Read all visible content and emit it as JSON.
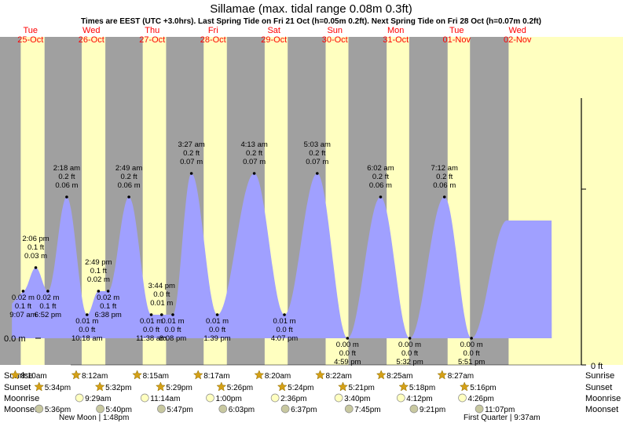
{
  "title": "Sillamae (max. tidal range 0.08m 0.3ft)",
  "subtitle": "Times are EEST (UTC +3.0hrs). Last Spring Tide on Fri 21 Oct (h=0.05m 0.2ft). Next Spring Tide on Fri 28 Oct (h=0.07m 0.2ft)",
  "colors": {
    "night": "#a0a0a0",
    "day": "#ffffc0",
    "tide": "#a0a0ff",
    "day_label": "#ff0000",
    "star": "#d4a017",
    "moon": "#ffffc0"
  },
  "chart_data": {
    "type": "area",
    "x_unit": "hours from 00:00 Tue 25-Oct",
    "days": [
      {
        "name": "Tue",
        "date": "25-Oct"
      },
      {
        "name": "Wed",
        "date": "26-Oct"
      },
      {
        "name": "Thu",
        "date": "27-Oct"
      },
      {
        "name": "Fri",
        "date": "28-Oct"
      },
      {
        "name": "Sat",
        "date": "29-Oct"
      },
      {
        "name": "Sun",
        "date": "30-Oct"
      },
      {
        "name": "Mon",
        "date": "31-Oct"
      },
      {
        "name": "Tue",
        "date": "01-Nov"
      },
      {
        "name": "Wed",
        "date": "02-Nov"
      }
    ],
    "y_axis": {
      "left_label": "0.0 m",
      "right_label": "0 ft",
      "ylim_m": [
        -0.025,
        0.095
      ]
    },
    "extremes": [
      {
        "x": 9.12,
        "h": 0.02,
        "label": [
          "0.02 m",
          "0.1 ft",
          "9:07 am"
        ]
      },
      {
        "x": 14.1,
        "h": 0.03,
        "label": [
          "2:06 pm",
          "0.1 ft",
          "0.03 m"
        ]
      },
      {
        "x": 18.87,
        "h": 0.02,
        "label": [
          "0.02 m",
          "0.1 ft",
          "6:52 pm"
        ]
      },
      {
        "x": 26.3,
        "h": 0.06,
        "label": [
          "2:18 am",
          "0.2 ft",
          "0.06 m"
        ]
      },
      {
        "x": 34.3,
        "h": 0.01,
        "label": [
          "0.01 m",
          "0.0 ft",
          "10:18 am"
        ]
      },
      {
        "x": 38.82,
        "h": 0.02,
        "label": [
          "2:49 pm",
          "0.1 ft",
          "0.02 m"
        ]
      },
      {
        "x": 42.63,
        "h": 0.02,
        "label": [
          "0.02 m",
          "0.1 ft",
          "6:38 pm"
        ]
      },
      {
        "x": 50.82,
        "h": 0.06,
        "label": [
          "2:49 am",
          "0.2 ft",
          "0.06 m"
        ]
      },
      {
        "x": 59.63,
        "h": 0.01,
        "label": [
          "0.01 m",
          "0.0 ft",
          "11:38 am"
        ]
      },
      {
        "x": 63.73,
        "h": 0.01,
        "label": [
          "3:44 pm",
          "0.0 ft",
          "0.01 m"
        ]
      },
      {
        "x": 68.13,
        "h": 0.01,
        "label": [
          "0.01 m",
          "0.0 ft",
          "8:08 pm"
        ]
      },
      {
        "x": 75.45,
        "h": 0.07,
        "label": [
          "3:27 am",
          "0.2 ft",
          "0.07 m"
        ]
      },
      {
        "x": 85.65,
        "h": 0.01,
        "label": [
          "0.01 m",
          "0.0 ft",
          "1:39 pm"
        ]
      },
      {
        "x": 100.22,
        "h": 0.07,
        "label": [
          "4:13 am",
          "0.2 ft",
          "0.07 m"
        ]
      },
      {
        "x": 112.12,
        "h": 0.01,
        "label": [
          "0.01 m",
          "0.0 ft",
          "4:07 pm"
        ]
      },
      {
        "x": 125.05,
        "h": 0.07,
        "label": [
          "5:03 am",
          "0.2 ft",
          "0.07 m"
        ]
      },
      {
        "x": 136.98,
        "h": 0.0,
        "label": [
          "0.00 m",
          "0.0 ft",
          "4:59 pm"
        ]
      },
      {
        "x": 150.03,
        "h": 0.06,
        "label": [
          "6:02 am",
          "0.2 ft",
          "0.06 m"
        ]
      },
      {
        "x": 161.53,
        "h": 0.0,
        "label": [
          "0.00 m",
          "0.0 ft",
          "5:32 pm"
        ]
      },
      {
        "x": 175.2,
        "h": 0.06,
        "label": [
          "7:12 am",
          "0.2 ft",
          "0.06 m"
        ]
      },
      {
        "x": 185.85,
        "h": 0.0,
        "label": [
          "0.00 m",
          "0.0 ft",
          "5:51 pm"
        ]
      }
    ],
    "sun_moon": {
      "row_labels": [
        "Sunrise",
        "Sunset",
        "Moonrise",
        "Moonset"
      ],
      "sunrise": [
        {
          "x": 8.17,
          "t": "8:10am"
        },
        {
          "x": 32.2,
          "t": "8:12am"
        },
        {
          "x": 56.25,
          "t": "8:15am"
        },
        {
          "x": 80.28,
          "t": "8:17am"
        },
        {
          "x": 104.33,
          "t": "8:20am"
        },
        {
          "x": 128.37,
          "t": "8:22am"
        },
        {
          "x": 152.42,
          "t": "8:25am"
        },
        {
          "x": 176.45,
          "t": "8:27am"
        }
      ],
      "sunset": [
        {
          "x": 17.57,
          "t": "5:34pm"
        },
        {
          "x": 41.53,
          "t": "5:32pm"
        },
        {
          "x": 65.48,
          "t": "5:29pm"
        },
        {
          "x": 89.43,
          "t": "5:26pm"
        },
        {
          "x": 113.4,
          "t": "5:24pm"
        },
        {
          "x": 137.35,
          "t": "5:21pm"
        },
        {
          "x": 161.3,
          "t": "5:18pm"
        },
        {
          "x": 185.27,
          "t": "5:16pm"
        }
      ],
      "moonrise": [
        {
          "x": 33.48,
          "t": "9:29am"
        },
        {
          "x": 59.23,
          "t": "11:14am"
        },
        {
          "x": 85.0,
          "t": "1:00pm"
        },
        {
          "x": 110.6,
          "t": "2:36pm"
        },
        {
          "x": 135.67,
          "t": "3:40pm"
        },
        {
          "x": 160.2,
          "t": "4:12pm"
        },
        {
          "x": 184.43,
          "t": "4:26pm"
        }
      ],
      "moonset": [
        {
          "x": 17.6,
          "t": "5:36pm"
        },
        {
          "x": 41.67,
          "t": "5:40pm"
        },
        {
          "x": 65.78,
          "t": "5:47pm"
        },
        {
          "x": 90.05,
          "t": "6:03pm"
        },
        {
          "x": 114.62,
          "t": "6:37pm"
        },
        {
          "x": 139.75,
          "t": "7:45pm"
        },
        {
          "x": 165.35,
          "t": "9:21pm"
        },
        {
          "x": 191.12,
          "t": "11:07pm"
        }
      ]
    },
    "moon_phases": [
      {
        "text": "New Moon | 1:48pm"
      },
      {
        "text": "First Quarter | 9:37am"
      }
    ]
  }
}
